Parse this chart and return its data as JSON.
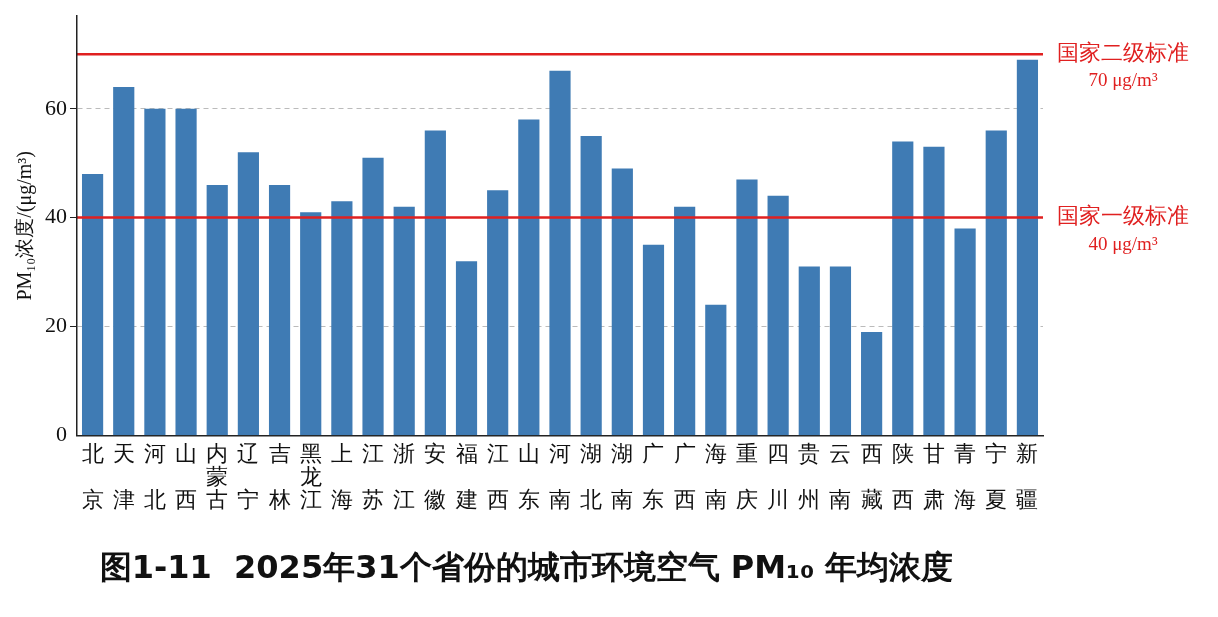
{
  "chart_data": {
    "type": "bar",
    "title": "图1-11  2025年31个省份的城市环境空气 PM₁₀ 年均浓度",
    "ylabel": "PM₁₀浓度/(μg/m³)",
    "categories": [
      "北京",
      "天津",
      "河北",
      "山西",
      "内蒙古",
      "辽宁",
      "吉林",
      "黑龙江",
      "上海",
      "江苏",
      "浙江",
      "安徽",
      "福建",
      "江西",
      "山东",
      "河南",
      "湖北",
      "湖南",
      "广东",
      "广西",
      "海南",
      "重庆",
      "四川",
      "贵州",
      "云南",
      "西藏",
      "陕西",
      "甘肃",
      "青海",
      "宁夏",
      "新疆"
    ],
    "values": [
      48,
      64,
      60,
      60,
      46,
      52,
      46,
      41,
      43,
      51,
      42,
      56,
      32,
      45,
      58,
      67,
      55,
      49,
      35,
      42,
      24,
      47,
      44,
      31,
      31,
      19,
      54,
      53,
      38,
      56,
      69
    ],
    "color": "#3f7bb4",
    "ylim": [
      0,
      77
    ],
    "yticks": [
      0,
      20,
      40,
      60
    ],
    "grid": "y",
    "legend": false,
    "ref_lines": [
      {
        "axis": "y",
        "value": 70,
        "label": "国家二级标准\n70 μg/m³",
        "color": "#e02020"
      },
      {
        "axis": "y",
        "value": 40,
        "label": "国家一级标准\n40 μg/m³",
        "color": "#e02020"
      }
    ]
  }
}
